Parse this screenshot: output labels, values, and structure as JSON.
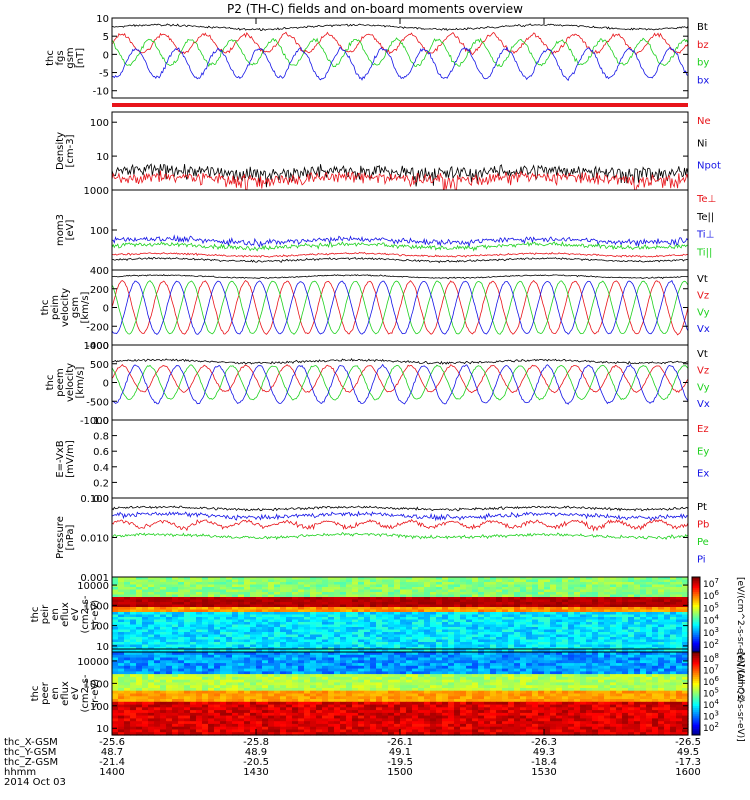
{
  "title": "P2 (TH-C) fields and on-board moments overview",
  "colors": {
    "black": "#000000",
    "red": "#e8141a",
    "green": "#1fd11f",
    "blue": "#1414e6"
  },
  "chart_data": [
    {
      "type": "line",
      "id": "fgs",
      "ylabel": [
        "thc",
        "fgs",
        "gsm",
        "[nT]"
      ],
      "ylim": [
        -12,
        10
      ],
      "yticks": [
        10,
        5,
        0,
        -5,
        -10
      ],
      "tick_labels": [
        "10",
        "5",
        "0",
        "-5",
        "-10"
      ],
      "legend": [
        "Bt",
        "bz",
        "by",
        "bx"
      ],
      "series": [
        {
          "name": "Bt",
          "color": "black",
          "center": 7.5,
          "amp": 0.6,
          "cycles": 0,
          "phase": 0,
          "noise": 0.4
        },
        {
          "name": "bz",
          "color": "red",
          "center": 3.0,
          "amp": 2.5,
          "cycles": 14,
          "phase": 0.0,
          "noise": 0.8
        },
        {
          "name": "by",
          "color": "green",
          "center": 0.5,
          "amp": 3.5,
          "cycles": 14,
          "phase": 2.1,
          "noise": 0.8
        },
        {
          "name": "bx",
          "color": "blue",
          "center": -2.5,
          "amp": 4.0,
          "cycles": 14,
          "phase": 4.2,
          "noise": 0.8
        }
      ]
    },
    {
      "type": "bar",
      "id": "flag",
      "note": "",
      "color": "red"
    },
    {
      "type": "line",
      "id": "density",
      "ylabel": [
        "Density",
        "[cm-3]"
      ],
      "log": true,
      "ylim": [
        1,
        200
      ],
      "yticks": [
        100,
        10
      ],
      "tick_labels": [
        "100",
        "10"
      ],
      "legend": [
        "Ne",
        "Ni",
        "Npot"
      ],
      "legend_colors": [
        "red",
        "black",
        "blue"
      ],
      "series": [
        {
          "name": "Ni",
          "color": "black",
          "center": 3.5,
          "amp": 0.4,
          "cycles": 0,
          "phase": 0,
          "noise": 2.5
        },
        {
          "name": "Ne",
          "color": "red",
          "center": 2.2,
          "amp": 0.3,
          "cycles": 0,
          "phase": 0,
          "noise": 1.4
        }
      ]
    },
    {
      "type": "line",
      "id": "temperature",
      "ylabel": [
        "mom3",
        "[eV]"
      ],
      "log": true,
      "ylim": [
        10,
        1000
      ],
      "yticks": [
        1000,
        100
      ],
      "tick_labels": [
        "1000",
        "100"
      ],
      "legend": [
        "Te⊥",
        "Te||",
        "Ti⊥",
        "Ti||"
      ],
      "legend_colors": [
        "red",
        "black",
        "blue",
        "green"
      ],
      "series": [
        {
          "name": "Ti⊥",
          "color": "blue",
          "center": 55,
          "amp": 5,
          "cycles": 0,
          "phase": 0,
          "noise": 14
        },
        {
          "name": "Ti||",
          "color": "green",
          "center": 40,
          "amp": 4,
          "cycles": 0,
          "phase": 0,
          "noise": 8
        },
        {
          "name": "Te⊥",
          "color": "red",
          "center": 24,
          "amp": 2,
          "cycles": 0,
          "phase": 0,
          "noise": 2
        },
        {
          "name": "Te||",
          "color": "black",
          "center": 18,
          "amp": 1.5,
          "cycles": 0,
          "phase": 0,
          "noise": 1.5
        }
      ]
    },
    {
      "type": "line",
      "id": "peim_velocity",
      "ylabel": [
        "thc",
        "peim",
        "velocity",
        "gsm",
        "[km/s]"
      ],
      "ylim": [
        -400,
        400
      ],
      "yticks": [
        400,
        200,
        0,
        -200,
        -400
      ],
      "tick_labels": [
        "400",
        "200",
        "0",
        "-200",
        "-400"
      ],
      "legend": [
        "Vt",
        "Vz",
        "Vy",
        "Vx"
      ],
      "series": [
        {
          "name": "Vt",
          "color": "black",
          "center": 330,
          "amp": 15,
          "cycles": 0,
          "phase": 0,
          "noise": 10
        },
        {
          "name": "Vz",
          "color": "red",
          "center": 0,
          "amp": 280,
          "cycles": 14,
          "phase": 0.0,
          "noise": 15
        },
        {
          "name": "Vy",
          "color": "green",
          "center": 0,
          "amp": 280,
          "cycles": 14,
          "phase": 2.1,
          "noise": 10
        },
        {
          "name": "Vx",
          "color": "blue",
          "center": 0,
          "amp": 280,
          "cycles": 14,
          "phase": 4.2,
          "noise": 12
        }
      ]
    },
    {
      "type": "line",
      "id": "peem_velocity",
      "ylabel": [
        "thc",
        "peem",
        "velocity",
        "[km/s]"
      ],
      "ylim": [
        -1000,
        1000
      ],
      "yticks": [
        1000,
        500,
        0,
        -500,
        -1000
      ],
      "tick_labels": [
        "1000",
        "500",
        "0",
        "-500",
        "-1000"
      ],
      "legend": [
        "Vt",
        "Vz",
        "Vy",
        "Vx"
      ],
      "series": [
        {
          "name": "Vt",
          "color": "black",
          "center": 560,
          "amp": 40,
          "cycles": 0,
          "phase": 0,
          "noise": 45
        },
        {
          "name": "Vz",
          "color": "red",
          "center": 100,
          "amp": 350,
          "cycles": 14,
          "phase": 0.0,
          "noise": 40
        },
        {
          "name": "Vy",
          "color": "green",
          "center": 0,
          "amp": 450,
          "cycles": 14,
          "phase": 2.1,
          "noise": 35
        },
        {
          "name": "Vx",
          "color": "blue",
          "center": -50,
          "amp": 500,
          "cycles": 14,
          "phase": 4.2,
          "noise": 45
        }
      ]
    },
    {
      "type": "line",
      "id": "efield",
      "ylabel": [
        "E=-VxB",
        "[mV/m]"
      ],
      "ylim": [
        0,
        1
      ],
      "yticks": [
        1.0,
        0.8,
        0.6,
        0.4,
        0.2,
        0.0
      ],
      "tick_labels": [
        "1.0",
        "0.8",
        "0.6",
        "0.4",
        "0.2",
        "0.0"
      ],
      "legend": [
        "Ez",
        "Ey",
        "Ex"
      ],
      "legend_colors": [
        "red",
        "green",
        "blue"
      ],
      "series": []
    },
    {
      "type": "line",
      "id": "pressure",
      "ylabel": [
        "Pressure",
        "[nPa]"
      ],
      "log": true,
      "ylim": [
        0.001,
        0.1
      ],
      "yticks": [
        0.1,
        0.01,
        0.001
      ],
      "tick_labels": [
        "0.100",
        "0.010",
        "0.001"
      ],
      "legend": [
        "Pt",
        "Pb",
        "Pe",
        "Pi"
      ],
      "legend_colors": [
        "black",
        "red",
        "green",
        "blue"
      ],
      "series": [
        {
          "name": "Pt",
          "color": "black",
          "center": 0.055,
          "amp": 0.004,
          "cycles": 0,
          "phase": 0,
          "noise": 0.006
        },
        {
          "name": "Pi",
          "color": "blue",
          "center": 0.036,
          "amp": 0.004,
          "cycles": 0,
          "phase": 0,
          "noise": 0.007
        },
        {
          "name": "Pb",
          "color": "red",
          "center": 0.022,
          "amp": 0.004,
          "cycles": 14,
          "phase": 0,
          "noise": 0.004
        },
        {
          "name": "Pe",
          "color": "green",
          "center": 0.011,
          "amp": 0.001,
          "cycles": 0,
          "phase": 0,
          "noise": 0.0015
        }
      ]
    },
    {
      "type": "heatmap",
      "id": "peir_spec",
      "ylabel": [
        "thc",
        "peir",
        "en",
        "eflux",
        "eV",
        "(cm2-s-",
        "sr-eV)"
      ],
      "log": true,
      "ylim": [
        5,
        25000
      ],
      "yticks": [
        10000,
        1000,
        100,
        10
      ],
      "tick_labels": [
        "10000",
        "1000",
        "100",
        "10"
      ]
    },
    {
      "type": "heatmap",
      "id": "peer_spec",
      "ylabel": [
        "thc",
        "peer",
        "en",
        "eflux",
        "eV",
        "(cm2-s-",
        "sr-eV)"
      ],
      "log": true,
      "ylim": [
        5,
        25000
      ],
      "yticks": [
        10000,
        1000,
        100,
        10
      ],
      "tick_labels": [
        "10000",
        "1000",
        "100",
        "10"
      ]
    }
  ],
  "colorbar": {
    "label": "[eV/(cm^2-s-sr-eV)]",
    "label_bottom": "[eV/(cm^2-s-sr-eV)] (All Qs)",
    "upper_ticks": [
      "10^7",
      "10^6",
      "10^5",
      "10^4",
      "10^3",
      "10^2"
    ],
    "lower_ticks": [
      "10^8",
      "10^7",
      "10^6",
      "10^5",
      "10^4",
      "10^3",
      "10^2"
    ]
  },
  "time_axis": {
    "rows": [
      {
        "label": "thc_X-GSM",
        "values": [
          "-25.6",
          "-25.8",
          "-26.1",
          "-26.3",
          "-26.5"
        ]
      },
      {
        "label": "thc_Y-GSM",
        "values": [
          "48.7",
          "48.9",
          "49.1",
          "49.3",
          "49.5"
        ]
      },
      {
        "label": "thc_Z-GSM",
        "values": [
          "-21.4",
          "-20.5",
          "-19.5",
          "-18.4",
          "-17.3"
        ]
      },
      {
        "label": "hhmm",
        "values": [
          "1400",
          "1430",
          "1500",
          "1530",
          "1600"
        ]
      }
    ],
    "date": "2014 Oct 03"
  }
}
